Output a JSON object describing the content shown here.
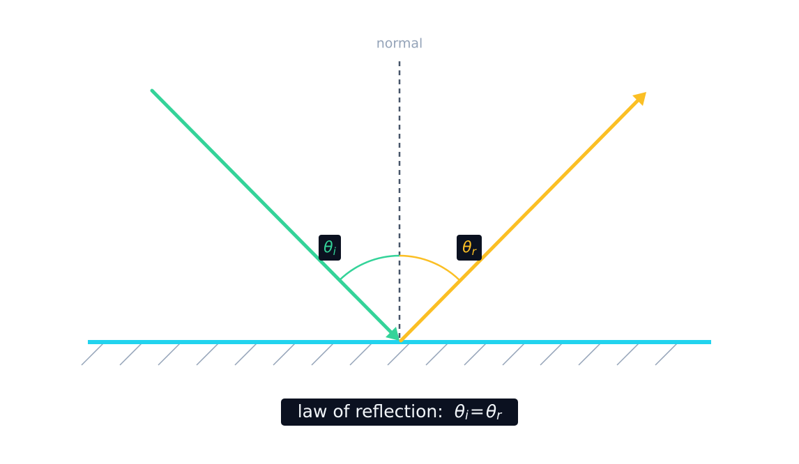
{
  "normal_label": "normal",
  "angles": {
    "incident": {
      "symbol": "θ",
      "subscript": "i"
    },
    "reflected": {
      "symbol": "θ",
      "subscript": "r"
    }
  },
  "caption": {
    "text": "law of reflection:",
    "lhs": {
      "symbol": "θ",
      "subscript": "i"
    },
    "relation": "=",
    "rhs": {
      "symbol": "θ",
      "subscript": "r"
    }
  }
}
